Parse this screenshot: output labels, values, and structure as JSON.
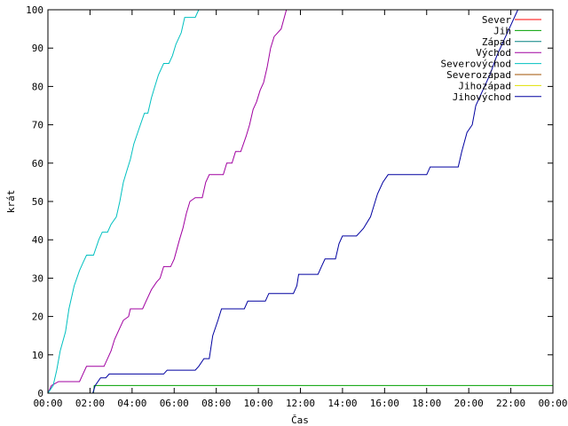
{
  "chart_data": {
    "type": "line",
    "xlabel": "Čas",
    "ylabel": "krát",
    "xlim": [
      "00:00",
      "24:00"
    ],
    "ylim": [
      0,
      100
    ],
    "x_ticks": [
      "00:00",
      "02:00",
      "04:00",
      "06:00",
      "08:00",
      "10:00",
      "12:00",
      "14:00",
      "16:00",
      "18:00",
      "20:00",
      "22:00",
      "00:00"
    ],
    "y_ticks": [
      0,
      10,
      20,
      30,
      40,
      50,
      60,
      70,
      80,
      90,
      100
    ],
    "grid": false,
    "legend_position": "top-right",
    "series": [
      {
        "name": "Sever",
        "color": "#ff0000",
        "points": []
      },
      {
        "name": "Jih",
        "color": "#00a000",
        "points": [
          [
            "02:10",
            0
          ],
          [
            "02:12",
            2
          ],
          [
            "24:00",
            2
          ]
        ]
      },
      {
        "name": "Západ",
        "color": "#008080",
        "points": []
      },
      {
        "name": "Východ",
        "color": "#a000a0",
        "points": [
          [
            "00:00",
            0
          ],
          [
            "00:10",
            2
          ],
          [
            "00:30",
            3
          ],
          [
            "01:30",
            3
          ],
          [
            "01:40",
            5
          ],
          [
            "01:50",
            7
          ],
          [
            "02:40",
            7
          ],
          [
            "02:50",
            9
          ],
          [
            "03:00",
            11
          ],
          [
            "03:10",
            14
          ],
          [
            "03:25",
            17
          ],
          [
            "03:35",
            19
          ],
          [
            "03:50",
            20
          ],
          [
            "03:55",
            22
          ],
          [
            "04:30",
            22
          ],
          [
            "04:40",
            24
          ],
          [
            "04:55",
            27
          ],
          [
            "05:10",
            29
          ],
          [
            "05:20",
            30
          ],
          [
            "05:30",
            33
          ],
          [
            "05:50",
            33
          ],
          [
            "06:00",
            35
          ],
          [
            "06:15",
            40
          ],
          [
            "06:25",
            43
          ],
          [
            "06:35",
            47
          ],
          [
            "06:45",
            50
          ],
          [
            "07:00",
            51
          ],
          [
            "07:20",
            51
          ],
          [
            "07:30",
            55
          ],
          [
            "07:40",
            57
          ],
          [
            "08:20",
            57
          ],
          [
            "08:30",
            60
          ],
          [
            "08:45",
            60
          ],
          [
            "08:55",
            63
          ],
          [
            "09:10",
            63
          ],
          [
            "09:25",
            67
          ],
          [
            "09:35",
            70
          ],
          [
            "09:45",
            74
          ],
          [
            "09:55",
            76
          ],
          [
            "10:05",
            79
          ],
          [
            "10:15",
            81
          ],
          [
            "10:25",
            85
          ],
          [
            "10:35",
            90
          ],
          [
            "10:45",
            93
          ],
          [
            "11:05",
            95
          ],
          [
            "11:20",
            100
          ]
        ]
      },
      {
        "name": "Severovýchod",
        "color": "#00c0c0",
        "points": [
          [
            "00:00",
            0
          ],
          [
            "00:15",
            2
          ],
          [
            "00:25",
            6
          ],
          [
            "00:35",
            11
          ],
          [
            "00:50",
            16
          ],
          [
            "01:00",
            22
          ],
          [
            "01:15",
            28
          ],
          [
            "01:30",
            32
          ],
          [
            "01:40",
            34
          ],
          [
            "01:50",
            36
          ],
          [
            "02:10",
            36
          ],
          [
            "02:25",
            40
          ],
          [
            "02:35",
            42
          ],
          [
            "02:50",
            42
          ],
          [
            "03:00",
            44
          ],
          [
            "03:15",
            46
          ],
          [
            "03:25",
            50
          ],
          [
            "03:35",
            55
          ],
          [
            "03:45",
            58
          ],
          [
            "03:55",
            61
          ],
          [
            "04:05",
            65
          ],
          [
            "04:20",
            69
          ],
          [
            "04:35",
            73
          ],
          [
            "04:45",
            73
          ],
          [
            "04:55",
            77
          ],
          [
            "05:05",
            80
          ],
          [
            "05:15",
            83
          ],
          [
            "05:30",
            86
          ],
          [
            "05:45",
            86
          ],
          [
            "05:55",
            88
          ],
          [
            "06:05",
            91
          ],
          [
            "06:20",
            94
          ],
          [
            "06:30",
            98
          ],
          [
            "07:00",
            98
          ],
          [
            "07:10",
            100
          ]
        ]
      },
      {
        "name": "Severozápad",
        "color": "#a05000",
        "points": []
      },
      {
        "name": "Jihozápad",
        "color": "#e0e000",
        "points": []
      },
      {
        "name": "Jihovýchod",
        "color": "#0000a0",
        "points": [
          [
            "02:08",
            0
          ],
          [
            "02:15",
            2
          ],
          [
            "02:30",
            4
          ],
          [
            "02:45",
            4
          ],
          [
            "02:55",
            5
          ],
          [
            "03:40",
            5
          ],
          [
            "05:30",
            5
          ],
          [
            "05:40",
            6
          ],
          [
            "07:00",
            6
          ],
          [
            "07:10",
            7
          ],
          [
            "07:25",
            9
          ],
          [
            "07:40",
            9
          ],
          [
            "07:50",
            15
          ],
          [
            "08:05",
            19
          ],
          [
            "08:15",
            22
          ],
          [
            "09:20",
            22
          ],
          [
            "09:30",
            24
          ],
          [
            "10:20",
            24
          ],
          [
            "10:30",
            26
          ],
          [
            "11:40",
            26
          ],
          [
            "11:50",
            28
          ],
          [
            "11:55",
            31
          ],
          [
            "12:50",
            31
          ],
          [
            "13:00",
            33
          ],
          [
            "13:10",
            35
          ],
          [
            "13:40",
            35
          ],
          [
            "13:50",
            39
          ],
          [
            "14:00",
            41
          ],
          [
            "14:40",
            41
          ],
          [
            "14:50",
            42
          ],
          [
            "15:00",
            43
          ],
          [
            "15:20",
            46
          ],
          [
            "15:40",
            52
          ],
          [
            "15:55",
            55
          ],
          [
            "16:10",
            57
          ],
          [
            "18:00",
            57
          ],
          [
            "18:10",
            59
          ],
          [
            "19:30",
            59
          ],
          [
            "19:40",
            63
          ],
          [
            "19:55",
            68
          ],
          [
            "20:10",
            70
          ],
          [
            "20:20",
            75
          ],
          [
            "20:40",
            79
          ],
          [
            "21:00",
            83
          ],
          [
            "21:20",
            88
          ],
          [
            "21:40",
            92
          ],
          [
            "22:00",
            96
          ],
          [
            "22:20",
            100
          ]
        ]
      }
    ]
  }
}
